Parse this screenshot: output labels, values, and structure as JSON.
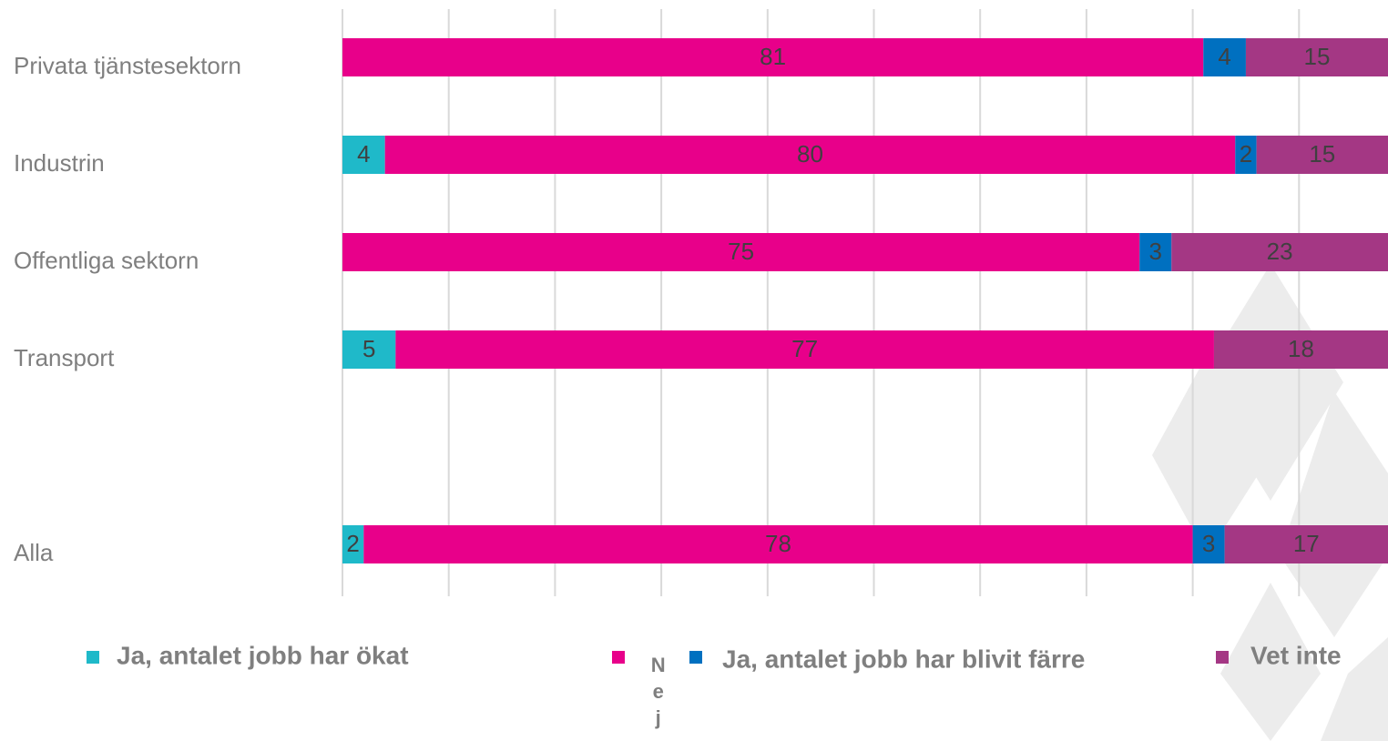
{
  "chart_data": {
    "type": "stacked_bar_horizontal",
    "categories": [
      "Privata tjänstesektorn",
      "Industrin",
      "Offentliga sektorn",
      "Transport",
      null,
      "Alla"
    ],
    "series": [
      {
        "name": "Ja, antalet jobb har ökat",
        "color": "#1fb9c9",
        "values": [
          null,
          4,
          null,
          5,
          null,
          2
        ]
      },
      {
        "name": "Nej",
        "color": "#e8008a",
        "values": [
          81,
          80,
          75,
          77,
          null,
          78
        ]
      },
      {
        "name": "Ja, antalet jobb har blivit färre",
        "color": "#0070c0",
        "values": [
          4,
          2,
          3,
          null,
          null,
          3
        ]
      },
      {
        "name": "Vet inte",
        "color": "#a43784",
        "values": [
          15,
          15,
          23,
          18,
          null,
          17
        ]
      }
    ],
    "xlim": [
      0,
      100
    ],
    "xticks": [
      0,
      10,
      20,
      30,
      40,
      50,
      60,
      70,
      80,
      90,
      100
    ],
    "grid": true,
    "legend": "bottom"
  }
}
